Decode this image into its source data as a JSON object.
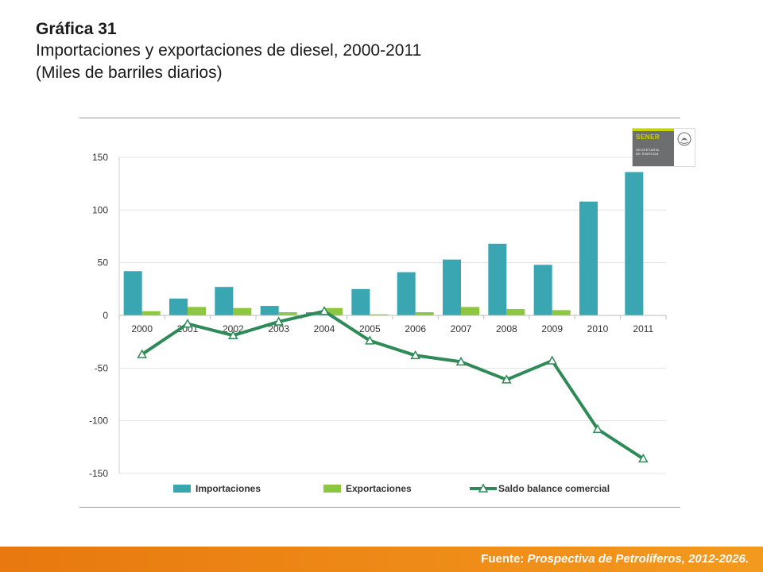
{
  "header": {
    "label": "Gráfica 31",
    "title": "Importaciones y exportaciones de diesel, 2000-2011",
    "subtitle": "(Miles de barriles diarios)"
  },
  "logo": {
    "name": "SENER",
    "sub_1": "SECRETARÍA",
    "sub_2": "DE ENERGÍA"
  },
  "footer": {
    "prefix": "Fuente: ",
    "source": "Prospectiva de Petrolíferos, 2012-2026."
  },
  "colors": {
    "importaciones": "#3aa6b2",
    "exportaciones": "#8dc63f",
    "saldo": "#2e8b57",
    "footer": "#f08a1c"
  },
  "chart_data": {
    "type": "bar",
    "categories": [
      "2000",
      "2001",
      "2002",
      "2003",
      "2004",
      "2005",
      "2006",
      "2007",
      "2008",
      "2009",
      "2010",
      "2011"
    ],
    "ylim": [
      -150,
      150
    ],
    "yticks": [
      150,
      100,
      50,
      0,
      -50,
      -100,
      -150
    ],
    "grid": true,
    "legend_position": "bottom",
    "series": [
      {
        "name": "Importaciones",
        "type": "bar",
        "values": [
          42,
          16,
          27,
          9,
          3,
          25,
          41,
          53,
          68,
          48,
          108,
          136
        ]
      },
      {
        "name": "Exportaciones",
        "type": "bar",
        "values": [
          4,
          8,
          7,
          3,
          7,
          1,
          3,
          8,
          6,
          5,
          0,
          0
        ]
      },
      {
        "name": "Saldo balance comercial",
        "type": "line",
        "marker": "triangle",
        "values": [
          -37,
          -8,
          -19,
          -6,
          4,
          -24,
          -38,
          -44,
          -61,
          -43,
          -108,
          -136
        ]
      }
    ]
  }
}
